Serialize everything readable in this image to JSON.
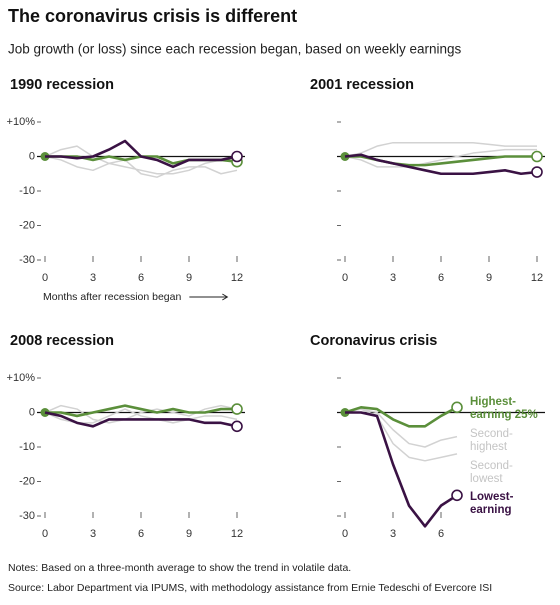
{
  "title": "The coronavirus crisis is different",
  "subtitle": "Job growth (or loss) since each recession began, based on weekly earnings",
  "chart_data": [
    {
      "type": "line",
      "title": "1990 recession",
      "xlabel": "Months after recession began",
      "x": [
        0,
        1,
        2,
        3,
        4,
        5,
        6,
        7,
        8,
        9,
        10,
        11,
        12
      ],
      "xlim": [
        0,
        12
      ],
      "xticks": [
        0,
        3,
        6,
        9,
        12
      ],
      "ylim": [
        -30,
        10
      ],
      "yticks": [
        {
          "value": 10,
          "label": "+10%"
        },
        0,
        -10,
        -20,
        -30
      ],
      "series": [
        {
          "color": "#5b8f3b",
          "values": [
            0,
            0,
            0,
            -1,
            0,
            -1,
            0,
            0,
            -2,
            -1,
            -1,
            -1,
            -1.5
          ]
        },
        {
          "color": "#d2d2d2",
          "values": [
            0,
            2,
            3,
            0,
            -2,
            -3,
            -4,
            -5,
            -5,
            -4,
            -2,
            -1,
            -1
          ]
        },
        {
          "color": "#d2d2d2",
          "values": [
            0,
            -1,
            -3,
            -4,
            -2,
            -1,
            -5,
            -6,
            -4,
            -3,
            -3,
            -5,
            -4
          ]
        },
        {
          "color": "#3a1244",
          "values": [
            0,
            0,
            -0.5,
            0,
            2,
            4.5,
            0,
            -1,
            -3,
            -1,
            -1,
            -1,
            0
          ]
        }
      ]
    },
    {
      "type": "line",
      "title": "2001 recession",
      "x": [
        0,
        1,
        2,
        3,
        4,
        5,
        6,
        7,
        8,
        9,
        10,
        11,
        12
      ],
      "xlim": [
        0,
        12
      ],
      "xticks": [
        0,
        3,
        6,
        9,
        12
      ],
      "ylim": [
        -30,
        10
      ],
      "yticks": [
        10,
        0,
        -10,
        -20,
        -30
      ],
      "series": [
        {
          "color": "#5b8f3b",
          "values": [
            0,
            0,
            -1,
            -2,
            -2.5,
            -2.5,
            -2,
            -1.5,
            -1,
            -0.5,
            0,
            0,
            0
          ]
        },
        {
          "color": "#d2d2d2",
          "values": [
            0,
            1,
            3,
            4,
            4,
            4,
            4,
            4,
            4,
            3.5,
            3,
            3,
            3
          ]
        },
        {
          "color": "#d2d2d2",
          "values": [
            0,
            -1,
            -3,
            -3,
            -3,
            -2,
            -1,
            0,
            1,
            1.5,
            2,
            2,
            2
          ]
        },
        {
          "color": "#3a1244",
          "values": [
            0,
            0.5,
            -1,
            -2,
            -3,
            -4,
            -5,
            -5,
            -5,
            -4.5,
            -4,
            -5,
            -4.5
          ]
        }
      ]
    },
    {
      "type": "line",
      "title": "2008 recession",
      "x": [
        0,
        1,
        2,
        3,
        4,
        5,
        6,
        7,
        8,
        9,
        10,
        11,
        12
      ],
      "xlim": [
        0,
        12
      ],
      "xticks": [
        0,
        3,
        6,
        9,
        12
      ],
      "ylim": [
        -30,
        10
      ],
      "yticks": [
        {
          "value": 10,
          "label": "+10%"
        },
        0,
        -10,
        -20,
        -30
      ],
      "series": [
        {
          "color": "#5b8f3b",
          "values": [
            0,
            0,
            -1,
            0,
            1,
            2,
            1,
            0,
            1,
            0,
            0,
            1,
            1
          ]
        },
        {
          "color": "#d2d2d2",
          "values": [
            0,
            2,
            1,
            -2,
            -3,
            -2,
            0,
            1,
            0,
            -1,
            1,
            2,
            1
          ]
        },
        {
          "color": "#d2d2d2",
          "values": [
            0,
            -2,
            -3,
            -3,
            -1,
            1,
            -1,
            -2,
            -3,
            -2,
            -1,
            -1,
            -2
          ]
        },
        {
          "color": "#3a1244",
          "values": [
            0,
            -1,
            -3,
            -4,
            -2,
            -2,
            -2,
            -2,
            -2,
            -2,
            -3,
            -3,
            -4
          ]
        }
      ]
    },
    {
      "type": "line",
      "title": "Coronavirus crisis",
      "x": [
        0,
        1,
        2,
        3,
        4,
        5,
        6,
        7
      ],
      "xlim": [
        0,
        12
      ],
      "xticks": [
        0,
        3,
        6
      ],
      "ylim": [
        -30,
        10
      ],
      "yticks": [
        10,
        0,
        -10,
        -20,
        -30
      ],
      "series": [
        {
          "name": "Highest-earning 25%",
          "color": "#5b8f3b",
          "values": [
            0,
            1.5,
            1,
            -2,
            -4,
            -4,
            -1,
            1.5
          ]
        },
        {
          "name": "Second-highest",
          "color": "#d2d2d2",
          "values": [
            0,
            1,
            0,
            -5,
            -9,
            -10,
            -8,
            -7
          ]
        },
        {
          "name": "Second-lowest",
          "color": "#d2d2d2",
          "values": [
            0,
            1,
            -1,
            -9,
            -13,
            -14,
            -13,
            -12
          ]
        },
        {
          "name": "Lowest-earning",
          "color": "#3a1244",
          "values": [
            0,
            0,
            -1,
            -15,
            -27,
            -33,
            -27,
            -24
          ]
        }
      ]
    }
  ],
  "notes": "Notes: Based on a three-month average to show the trend in volatile data.",
  "source": "Source: Labor Department via IPUMS, with methodology assistance from Ernie Tedeschi of Evercore ISI"
}
